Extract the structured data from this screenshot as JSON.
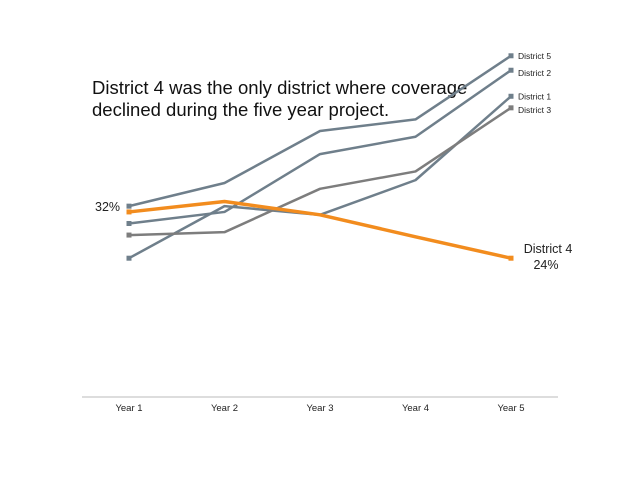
{
  "chart_data": {
    "type": "line",
    "title": "District 4 was the only district where coverage declined during the five year project.",
    "categories": [
      "Year 1",
      "Year 2",
      "Year 3",
      "Year 4",
      "Year 5"
    ],
    "ylim": [
      0,
      60
    ],
    "grid": false,
    "legend": "direct labels at line ends",
    "series": [
      {
        "name": "District 5",
        "values": [
          33,
          37,
          46,
          48,
          59
        ],
        "color": "#6f7f8b",
        "label": "District 5"
      },
      {
        "name": "District 2",
        "values": [
          30,
          32,
          42,
          45,
          56.5
        ],
        "color": "#6f7f8b",
        "label": "District 2"
      },
      {
        "name": "District 1",
        "values": [
          24,
          33,
          31.5,
          37.5,
          52
        ],
        "color": "#6f7f8b",
        "label": "District 1"
      },
      {
        "name": "District 3",
        "values": [
          28,
          28.5,
          36,
          39,
          50
        ],
        "color": "#7d7d7d",
        "label": "District 3"
      },
      {
        "name": "District 4",
        "values": [
          32,
          33.8,
          31.5,
          27.7,
          24
        ],
        "color": "#f28c1e",
        "label": "District 4",
        "start_label": "32%",
        "end_label": "24%"
      }
    ]
  }
}
